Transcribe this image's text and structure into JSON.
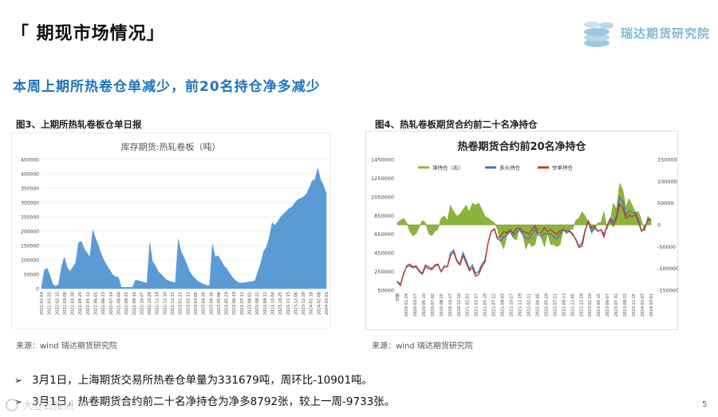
{
  "slide": {
    "title": "「 期现市场情况」",
    "headline": "本周上期所热卷仓单减少，前20名持仓净多减少",
    "logo_text": "瑞达期货研究院",
    "page_number": "5",
    "watermark_text": "大豆云投研"
  },
  "figures": [
    {
      "caption": "图3、上期所热轧卷板仓单日报",
      "source": "来源：wind    瑞达期货研究院"
    },
    {
      "caption": "图4、热轧卷板期货合约前二十名净持仓",
      "source": "来源：wind    瑞达期货研究院"
    }
  ],
  "bullets": [
    {
      "mark": "➢",
      "text": "3月1日，上海期货交易所热卷仓单量为331679吨，周环比-10901吨。"
    },
    {
      "mark": "➢",
      "text": "3月1日，热卷期货合约前二十名净持仓为净多8792张，较上一周-9733张。"
    }
  ],
  "colors": {
    "title": "#111111",
    "headline": "#1f74bd",
    "logo": "#7fb7d6",
    "area": "#5b9bd5",
    "net": "#8db43a",
    "long": "#4472c4",
    "short": "#c0392b"
  },
  "chart_data": [
    {
      "type": "area",
      "title": "库存期货:热轧卷板（吨）",
      "xlabel": "",
      "ylabel": "",
      "ylim": [
        0,
        450000
      ],
      "yticks": [
        0,
        50000,
        100000,
        150000,
        200000,
        250000,
        300000,
        350000,
        400000,
        450000
      ],
      "x_start": "2022-01-04",
      "x_end": "2024-03-01",
      "series": [
        {
          "name": "库存期货:热轧卷板",
          "values": [
            5000,
            65000,
            72000,
            45000,
            15000,
            8000,
            15000,
            75000,
            110000,
            75000,
            60000,
            75000,
            90000,
            160000,
            165000,
            140000,
            125000,
            110000,
            205000,
            175000,
            150000,
            120000,
            98000,
            80000,
            65000,
            48000,
            42000,
            40000,
            5000,
            5000,
            5000,
            5000,
            5000,
            30000,
            28000,
            25000,
            22000,
            20000,
            160000,
            95000,
            80000,
            60000,
            50000,
            40000,
            30000,
            26000,
            23000,
            21000,
            172000,
            130000,
            110000,
            85000,
            60000,
            45000,
            35000,
            25000,
            20000,
            15000,
            12000,
            10000,
            155000,
            110000,
            115000,
            100000,
            80000,
            70000,
            55000,
            40000,
            30000,
            22000,
            20000,
            20000,
            22000,
            24000,
            25000,
            28000,
            60000,
            90000,
            130000,
            145000,
            180000,
            230000,
            220000,
            235000,
            250000,
            260000,
            270000,
            280000,
            285000,
            300000,
            310000,
            315000,
            320000,
            330000,
            350000,
            375000,
            380000,
            420000,
            380000,
            360000,
            332000
          ]
        }
      ]
    },
    {
      "type": "line",
      "title": "热卷期货合约前20名净持仓",
      "ylim": [
        50000,
        1450000
      ],
      "yticks": [
        50000,
        250000,
        450000,
        650000,
        850000,
        1050000,
        1250000,
        1450000
      ],
      "y2lim": [
        -150000,
        150000
      ],
      "y2ticks": [
        -150000,
        -100000,
        -50000,
        0,
        50000,
        100000,
        150000
      ],
      "x_start": "2020-01-24",
      "x_end": "2024-03-01",
      "x_first_label": "日期",
      "legend": [
        "净持仓（右）",
        "多头持仓",
        "空单持仓"
      ],
      "series": [
        {
          "name": "净持仓（右）",
          "axis": "right",
          "type": "area",
          "values": [
            5000,
            10000,
            15000,
            5000,
            -15000,
            -25000,
            -20000,
            -5000,
            10000,
            5000,
            -20000,
            -25000,
            -15000,
            -10000,
            15000,
            20000,
            10000,
            45000,
            30000,
            20000,
            25000,
            35000,
            45000,
            30000,
            50000,
            45000,
            50000,
            35000,
            20000,
            15000,
            10000,
            5000,
            -10000,
            -40000,
            -55000,
            -25000,
            -15000,
            -30000,
            -35000,
            -10000,
            -20000,
            -55000,
            -40000,
            -50000,
            -45000,
            -10000,
            -30000,
            -50000,
            -20000,
            -45000,
            -45000,
            -50000,
            -45000,
            -10000,
            -15000,
            -10000,
            -10000,
            10000,
            15000,
            30000,
            20000,
            5000,
            -20000,
            -10000,
            5000,
            5000,
            30000,
            -10000,
            10000,
            50000,
            35000,
            95000,
            80000,
            40000,
            60000,
            45000,
            30000,
            30000,
            10000,
            -15000,
            20000,
            8792
          ]
        },
        {
          "name": "多头持仓",
          "axis": "left",
          "type": "line",
          "values": [
            150000,
            110000,
            230000,
            300000,
            310000,
            290000,
            300000,
            250000,
            220000,
            300000,
            280000,
            270000,
            310000,
            320000,
            250000,
            310000,
            300000,
            450000,
            480000,
            370000,
            330000,
            450000,
            370000,
            280000,
            320000,
            230000,
            250000,
            330000,
            370000,
            560000,
            680000,
            700000,
            600000,
            580000,
            620000,
            640000,
            680000,
            630000,
            670000,
            700000,
            650000,
            610000,
            600000,
            650000,
            700000,
            640000,
            630000,
            660000,
            650000,
            650000,
            620000,
            600000,
            650000,
            700000,
            660000,
            680000,
            640000,
            600000,
            520000,
            560000,
            700000,
            790000,
            680000,
            720000,
            680000,
            700000,
            650000,
            740000,
            820000,
            780000,
            850000,
            1050000,
            1000000,
            850000,
            900000,
            880000,
            880000,
            800000,
            690000,
            700000,
            820000,
            810000
          ]
        },
        {
          "name": "空单持仓",
          "axis": "left",
          "type": "line",
          "values": [
            140000,
            100000,
            220000,
            310000,
            330000,
            300000,
            310000,
            260000,
            230000,
            320000,
            300000,
            280000,
            320000,
            330000,
            250000,
            300000,
            300000,
            420000,
            460000,
            360000,
            320000,
            420000,
            340000,
            260000,
            290000,
            200000,
            220000,
            300000,
            350000,
            560000,
            680000,
            710000,
            610000,
            630000,
            680000,
            660000,
            700000,
            660000,
            710000,
            720000,
            680000,
            670000,
            650000,
            700000,
            740000,
            660000,
            670000,
            720000,
            680000,
            700000,
            670000,
            650000,
            690000,
            700000,
            680000,
            690000,
            650000,
            590000,
            510000,
            520000,
            690000,
            790000,
            720000,
            740000,
            680000,
            700000,
            620000,
            750000,
            800000,
            740000,
            820000,
            970000,
            930000,
            820000,
            850000,
            840000,
            860000,
            780000,
            680000,
            720000,
            800000,
            800000
          ]
        }
      ]
    }
  ]
}
